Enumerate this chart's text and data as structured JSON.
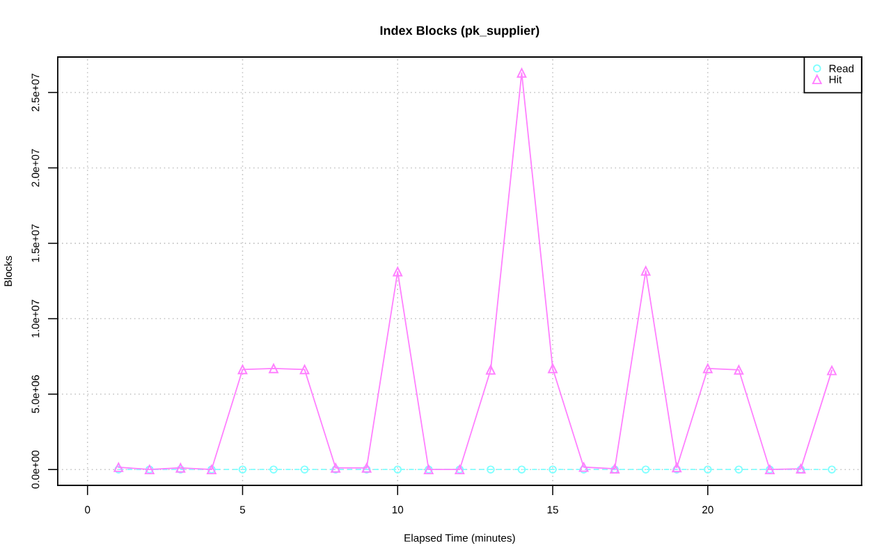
{
  "chart_data": {
    "type": "line",
    "title": "Index Blocks (pk_supplier)",
    "xlabel": "Elapsed Time (minutes)",
    "ylabel": "Blocks",
    "x": [
      1,
      2,
      3,
      4,
      5,
      6,
      7,
      8,
      9,
      10,
      11,
      12,
      13,
      14,
      15,
      16,
      17,
      18,
      19,
      20,
      21,
      22,
      23,
      24
    ],
    "series": [
      {
        "name": "Read",
        "color": "#80ffff",
        "marker": "circle",
        "line_style": "dashed",
        "values": [
          0,
          0,
          0,
          0,
          0,
          0,
          0,
          0,
          0,
          0,
          0,
          0,
          0,
          0,
          0,
          0,
          0,
          0,
          0,
          0,
          0,
          0,
          0,
          0
        ]
      },
      {
        "name": "Hit",
        "color": "#ff80ff",
        "marker": "triangle",
        "line_style": "solid",
        "values": [
          150000,
          0,
          110000,
          0,
          6630000,
          6700000,
          6630000,
          110000,
          110000,
          13120000,
          0,
          0,
          6610000,
          26300000,
          6700000,
          160000,
          50000,
          13170000,
          130000,
          6700000,
          6610000,
          0,
          50000,
          6570000
        ]
      }
    ],
    "xlim": [
      -0.96,
      24.96
    ],
    "xticks": [
      0,
      5,
      10,
      15,
      20
    ],
    "ylim": [
      -1050000,
      27350000
    ],
    "yticks": [
      {
        "value": 0,
        "label": "0.0e+00"
      },
      {
        "value": 5000000,
        "label": "5.0e+06"
      },
      {
        "value": 10000000,
        "label": "1.0e+07"
      },
      {
        "value": 15000000,
        "label": "1.5e+07"
      },
      {
        "value": 20000000,
        "label": "2.0e+07"
      },
      {
        "value": 25000000,
        "label": "2.5e+07"
      }
    ],
    "grid": true,
    "legend": "top right"
  }
}
